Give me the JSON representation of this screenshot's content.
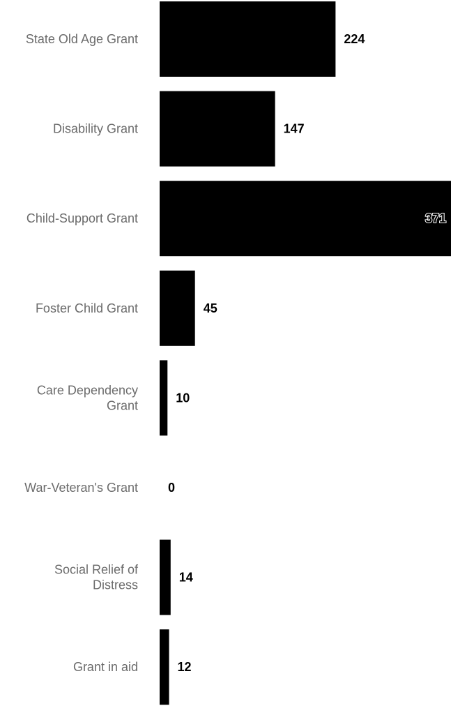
{
  "chart_data": {
    "type": "bar",
    "orientation": "horizontal",
    "categories": [
      "State Old Age Grant",
      "Disability Grant",
      "Child-Support Grant",
      "Foster Child Grant",
      "Care Dependency Grant",
      "War-Veteran's Grant",
      "Social Relief of Distress",
      "Grant in aid"
    ],
    "category_lines": [
      [
        "State Old Age Grant"
      ],
      [
        "Disability Grant"
      ],
      [
        "Child-Support Grant"
      ],
      [
        "Foster Child Grant"
      ],
      [
        "Care Dependency",
        "Grant"
      ],
      [
        "War-Veteran's Grant"
      ],
      [
        "Social Relief of",
        "Distress"
      ],
      [
        "Grant in aid"
      ]
    ],
    "values": [
      224,
      147,
      371,
      45,
      10,
      0,
      14,
      12
    ],
    "value_labels": [
      "224",
      "147",
      "371",
      "45",
      "10",
      "0",
      "14",
      "12"
    ],
    "xlim": [
      0,
      371
    ],
    "bar_color": "#000000",
    "label_color": "#6b6b6b",
    "title": "",
    "xlabel": "",
    "ylabel": "",
    "grid": false,
    "legend": "none"
  }
}
